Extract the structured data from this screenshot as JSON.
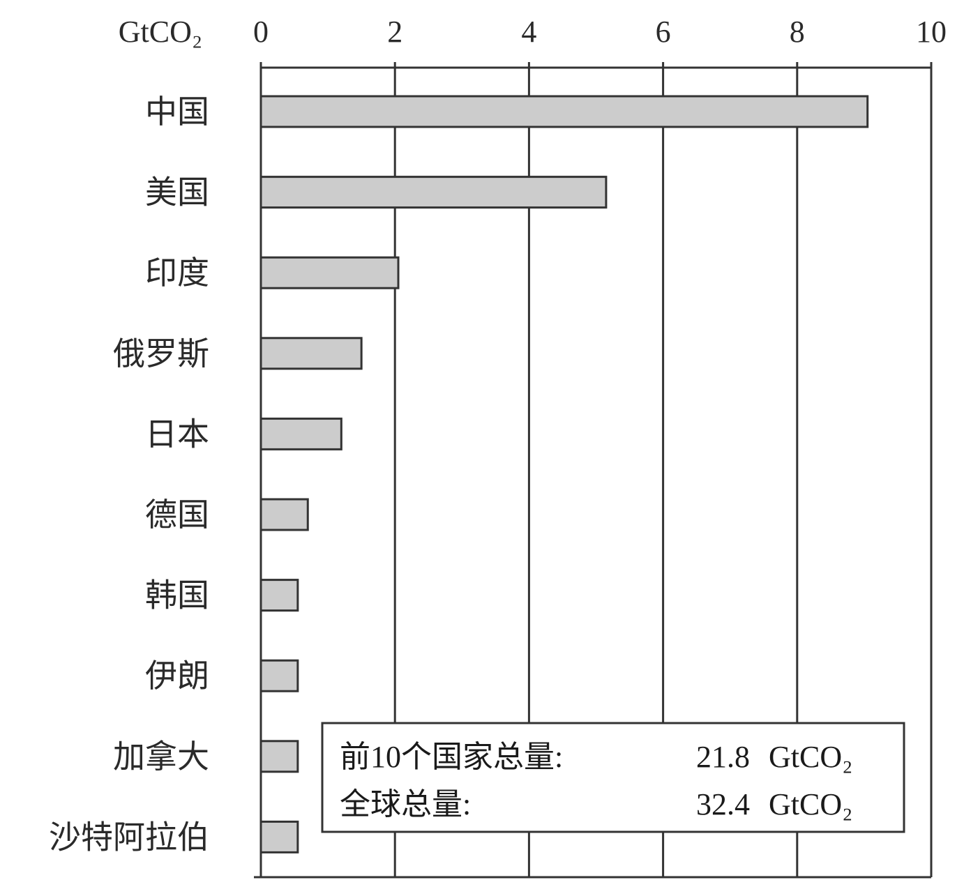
{
  "chart_data": {
    "type": "bar",
    "orientation": "horizontal",
    "unit_label": "GtCO₂",
    "categories": [
      "中国",
      "美国",
      "印度",
      "俄罗斯",
      "日本",
      "德国",
      "韩国",
      "伊朗",
      "加拿大",
      "沙特阿拉伯"
    ],
    "values": [
      9.05,
      5.15,
      2.05,
      1.5,
      1.2,
      0.7,
      0.55,
      0.55,
      0.55,
      0.55
    ],
    "xlim": [
      0,
      10
    ],
    "xticks": [
      0,
      2,
      4,
      6,
      8,
      10
    ],
    "grid": true,
    "bar_color": "#cccccc",
    "annotation": {
      "rows": [
        {
          "label": "前10个国家总量:",
          "value": "21.8",
          "unit": "GtCO₂"
        },
        {
          "label": "全球总量:",
          "value": "32.4",
          "unit": "GtCO₂"
        }
      ]
    }
  }
}
